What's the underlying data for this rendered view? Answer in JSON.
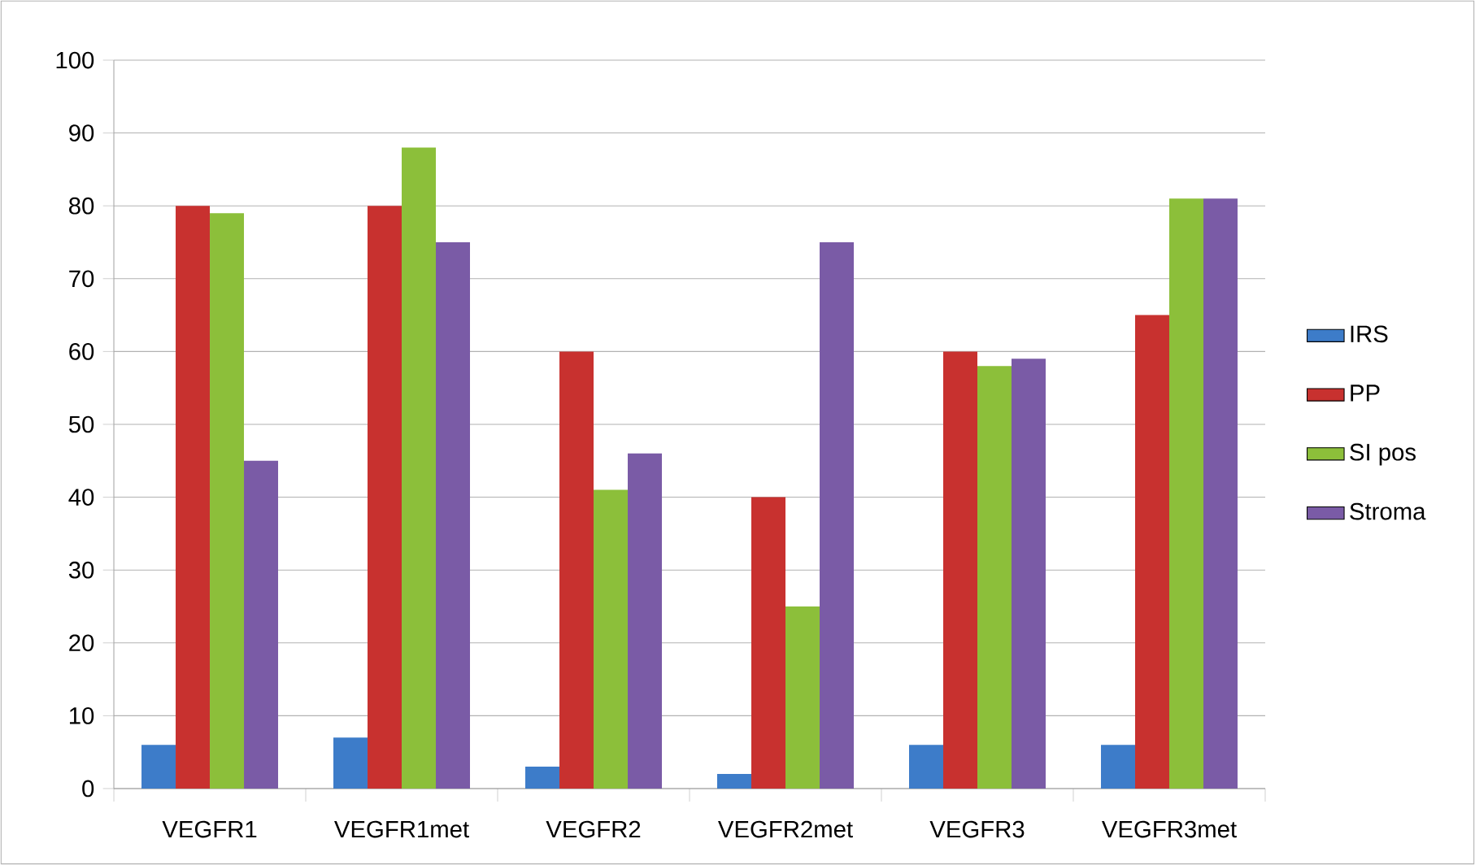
{
  "chart_data": {
    "type": "bar",
    "categories": [
      "VEGFR1",
      "VEGFR1met",
      "VEGFR2",
      "VEGFR2met",
      "VEGFR3",
      "VEGFR3met"
    ],
    "series": [
      {
        "name": "IRS",
        "color": "#3d7cc9",
        "values": [
          6,
          7,
          3,
          2,
          6,
          6
        ]
      },
      {
        "name": "PP",
        "color": "#c8312f",
        "values": [
          80,
          80,
          60,
          40,
          60,
          65
        ]
      },
      {
        "name": "SI pos",
        "color": "#8cbf3a",
        "values": [
          79,
          88,
          41,
          25,
          58,
          81
        ]
      },
      {
        "name": "Stroma",
        "color": "#7a5ba6",
        "values": [
          45,
          75,
          46,
          75,
          59,
          81
        ]
      }
    ],
    "ylim": [
      0,
      100
    ],
    "yticks": [
      0,
      10,
      20,
      30,
      40,
      50,
      60,
      70,
      80,
      90,
      100
    ],
    "grid": "y",
    "legend": "right"
  }
}
